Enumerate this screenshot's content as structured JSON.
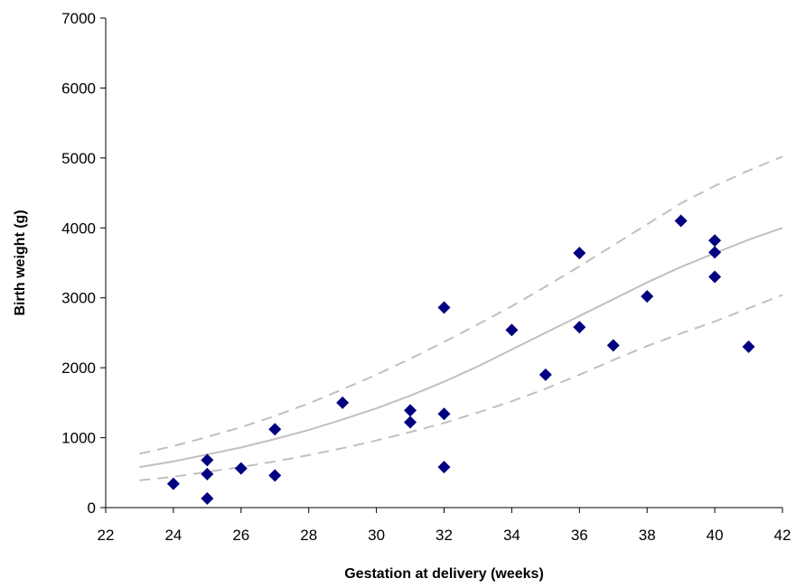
{
  "chart_data": {
    "type": "scatter",
    "title": "",
    "xlabel": "Gestation at delivery (weeks)",
    "ylabel": "Birth weight (g)",
    "xlim": [
      22,
      42
    ],
    "ylim": [
      0,
      7000
    ],
    "xticks": [
      22,
      24,
      26,
      28,
      30,
      32,
      34,
      36,
      38,
      40,
      42
    ],
    "yticks": [
      0,
      1000,
      2000,
      3000,
      4000,
      5000,
      6000,
      7000
    ],
    "grid": false,
    "legend": "none",
    "points": {
      "marker": "diamond",
      "color": "#000080",
      "x": [
        24,
        25,
        25,
        25,
        26,
        27,
        27,
        29,
        31,
        31,
        32,
        32,
        32,
        34,
        35,
        36,
        36,
        37,
        38,
        39,
        40,
        40,
        40,
        41
      ],
      "y": [
        340,
        680,
        480,
        130,
        560,
        460,
        1120,
        1500,
        1390,
        1220,
        2860,
        1340,
        580,
        2540,
        1900,
        3640,
        2580,
        2320,
        3020,
        4100,
        3820,
        3650,
        3300,
        2300
      ]
    },
    "curves": [
      {
        "role": "fit",
        "style": "solid",
        "color": "#c0c0c0",
        "x": [
          23,
          24,
          25,
          26,
          27,
          28,
          29,
          30,
          31,
          32,
          33,
          34,
          35,
          36,
          37,
          38,
          39,
          40,
          41,
          42
        ],
        "y": [
          580,
          660,
          760,
          860,
          980,
          1110,
          1260,
          1420,
          1600,
          1800,
          2020,
          2260,
          2500,
          2740,
          2980,
          3220,
          3440,
          3640,
          3830,
          4000
        ]
      },
      {
        "role": "upper-bound",
        "style": "dashed",
        "color": "#c0c0c0",
        "x": [
          23,
          24,
          25,
          26,
          27,
          28,
          29,
          30,
          31,
          32,
          33,
          34,
          35,
          36,
          37,
          38,
          39,
          40,
          41,
          42
        ],
        "y": [
          770,
          880,
          1010,
          1150,
          1310,
          1490,
          1690,
          1900,
          2130,
          2370,
          2620,
          2880,
          3160,
          3450,
          3750,
          4050,
          4350,
          4600,
          4820,
          5020
        ]
      },
      {
        "role": "lower-bound",
        "style": "dashed",
        "color": "#c0c0c0",
        "x": [
          23,
          24,
          25,
          26,
          27,
          28,
          29,
          30,
          31,
          32,
          33,
          34,
          35,
          36,
          37,
          38,
          39,
          40,
          41,
          42
        ],
        "y": [
          390,
          440,
          510,
          580,
          660,
          750,
          850,
          960,
          1080,
          1210,
          1360,
          1520,
          1700,
          1900,
          2110,
          2310,
          2490,
          2660,
          2850,
          3040
        ]
      }
    ]
  }
}
